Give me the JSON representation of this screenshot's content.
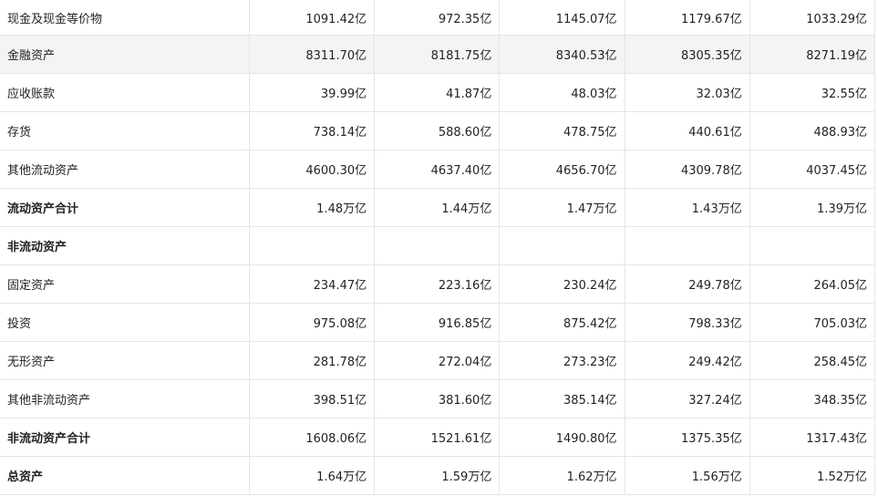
{
  "rows": [
    {
      "label": "现金及现金等价物",
      "values": [
        "1091.42亿",
        "972.35亿",
        "1145.07亿",
        "1179.67亿",
        "1033.29亿"
      ]
    },
    {
      "label": "金融资产",
      "values": [
        "8311.70亿",
        "8181.75亿",
        "8340.53亿",
        "8305.35亿",
        "8271.19亿"
      ]
    },
    {
      "label": "应收账款",
      "values": [
        "39.99亿",
        "41.87亿",
        "48.03亿",
        "32.03亿",
        "32.55亿"
      ]
    },
    {
      "label": "存货",
      "values": [
        "738.14亿",
        "588.60亿",
        "478.75亿",
        "440.61亿",
        "488.93亿"
      ]
    },
    {
      "label": "其他流动资产",
      "values": [
        "4600.30亿",
        "4637.40亿",
        "4656.70亿",
        "4309.78亿",
        "4037.45亿"
      ]
    },
    {
      "label": "流动资产合计",
      "values": [
        "1.48万亿",
        "1.44万亿",
        "1.47万亿",
        "1.43万亿",
        "1.39万亿"
      ]
    },
    {
      "label": "非流动资产",
      "values": [
        "",
        "",
        "",
        "",
        ""
      ]
    },
    {
      "label": "固定资产",
      "values": [
        "234.47亿",
        "223.16亿",
        "230.24亿",
        "249.78亿",
        "264.05亿"
      ]
    },
    {
      "label": "投资",
      "values": [
        "975.08亿",
        "916.85亿",
        "875.42亿",
        "798.33亿",
        "705.03亿"
      ]
    },
    {
      "label": "无形资产",
      "values": [
        "281.78亿",
        "272.04亿",
        "273.23亿",
        "249.42亿",
        "258.45亿"
      ]
    },
    {
      "label": "其他非流动资产",
      "values": [
        "398.51亿",
        "381.60亿",
        "385.14亿",
        "327.24亿",
        "348.35亿"
      ]
    },
    {
      "label": "非流动资产合计",
      "values": [
        "1608.06亿",
        "1521.61亿",
        "1490.80亿",
        "1375.35亿",
        "1317.43亿"
      ]
    },
    {
      "label": "总资产",
      "values": [
        "1.64万亿",
        "1.59万亿",
        "1.62万亿",
        "1.56万亿",
        "1.52万亿"
      ]
    }
  ]
}
